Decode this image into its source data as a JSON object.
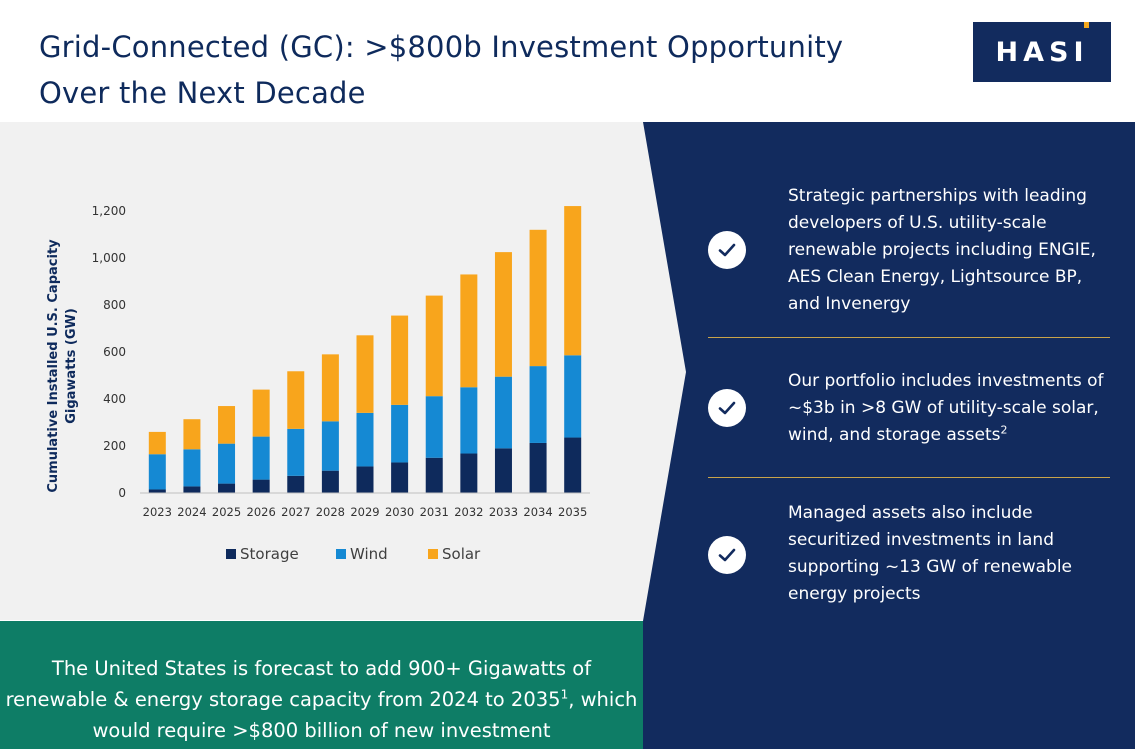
{
  "header": {
    "title_line1": "Grid-Connected (GC): >$800b Investment Opportunity",
    "title_line2": "Over the Next Decade",
    "logo_text": "HASI"
  },
  "chart_data": {
    "type": "bar",
    "stacked": true,
    "categories": [
      "2023",
      "2024",
      "2025",
      "2026",
      "2027",
      "2028",
      "2029",
      "2030",
      "2031",
      "2032",
      "2033",
      "2034",
      "2035"
    ],
    "series": [
      {
        "name": "Storage",
        "color": "#0e2a5c",
        "values": [
          15,
          28,
          40,
          57,
          73,
          95,
          113,
          130,
          150,
          168,
          190,
          213,
          236
        ]
      },
      {
        "name": "Wind",
        "color": "#1589d3",
        "values": [
          150,
          158,
          170,
          183,
          200,
          210,
          228,
          245,
          262,
          282,
          305,
          327,
          350
        ]
      },
      {
        "name": "Solar",
        "color": "#f8a51c",
        "values": [
          95,
          128,
          160,
          200,
          245,
          285,
          330,
          380,
          428,
          480,
          530,
          580,
          635
        ]
      }
    ],
    "ylabel_line1": "Cumulative Installed U.S. Capacity",
    "ylabel_line2": "Gigawatts (GW)",
    "ylim": [
      0,
      1200
    ],
    "yticks": [
      0,
      200,
      400,
      600,
      800,
      1000,
      1200
    ],
    "ytick_labels": [
      "0",
      "200",
      "400",
      "600",
      "800",
      "1,000",
      "1,200"
    ],
    "legend_position": "bottom",
    "grid": false
  },
  "bullets": [
    {
      "text": "Strategic partnerships with leading developers of U.S. utility-scale renewable projects including ENGIE, AES Clean Energy, Lightsource BP, and Invenergy",
      "sup": ""
    },
    {
      "text": "Our portfolio includes investments of ~$3b in >8 GW of utility-scale solar, wind, and storage assets",
      "sup": "2"
    },
    {
      "text": "Managed assets also include securitized investments in land supporting ~13 GW of renewable energy projects",
      "sup": ""
    }
  ],
  "banner": {
    "text": "The United States is forecast to add 900+ Gigawatts of renewable & energy storage capacity from 2024 to 2035",
    "sup": "1",
    "text_after": ", which would require >$800 billion of new investment"
  },
  "colors": {
    "navy": "#0e2a5c",
    "logo_bg": "#122b5e",
    "accent_gold": "#f5a81c",
    "divider_gold": "#c9a44a",
    "banner_green": "#0e7d66",
    "panel_gray": "#f1f1f1"
  },
  "icons": {
    "bullet": "check-circle-icon"
  }
}
